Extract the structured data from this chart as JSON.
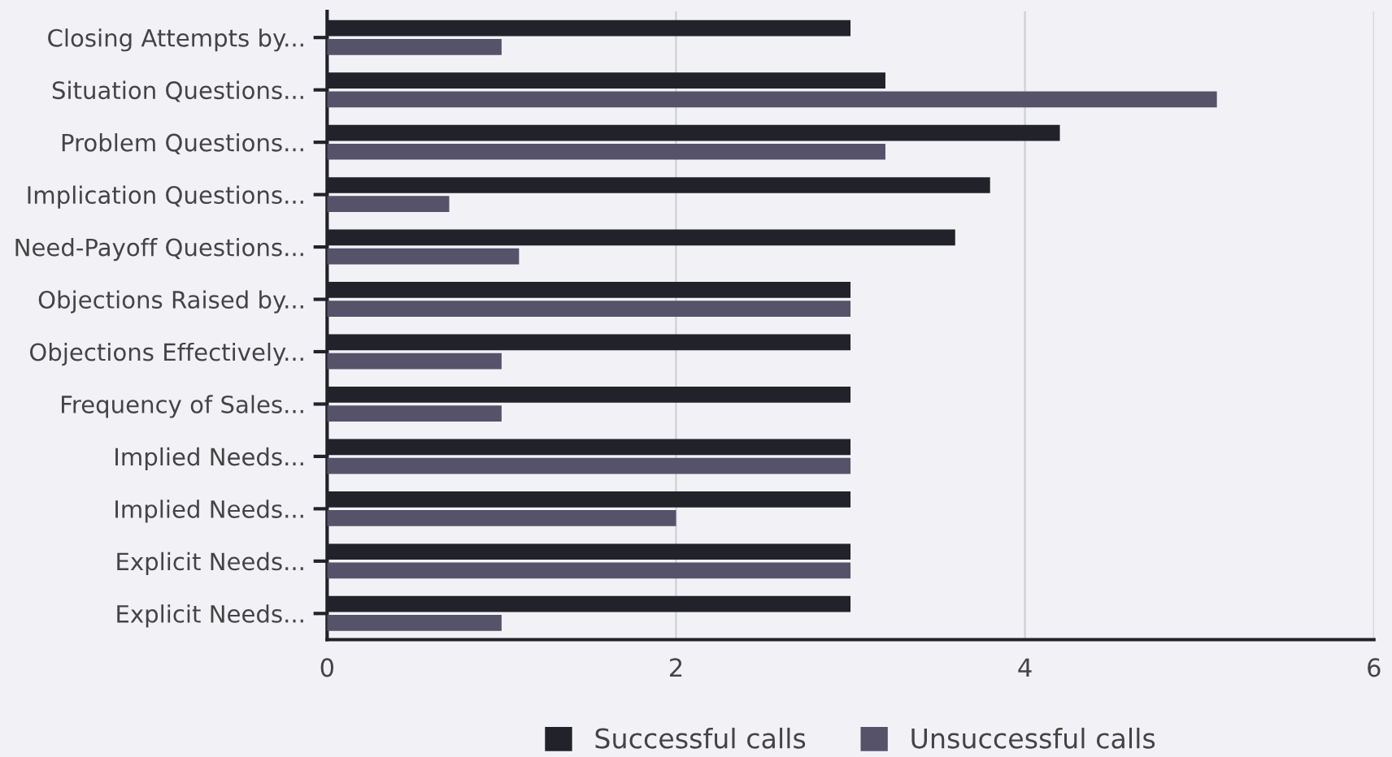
{
  "chart_data": {
    "type": "bar",
    "orientation": "horizontal",
    "categories": [
      "Closing Attempts by...",
      "Situation Questions...",
      "Problem Questions...",
      "Implication Questions...",
      "Need-Payoff Questions...",
      "Objections Raised by...",
      "Objections Effectively...",
      "Frequency of Sales...",
      "Implied Needs...",
      "Implied Needs...",
      "Explicit Needs...",
      "Explicit Needs..."
    ],
    "series": [
      {
        "name": "Successful calls",
        "color": "#22222a",
        "values": [
          3,
          3.2,
          4.2,
          3.8,
          3.6,
          3,
          3,
          3,
          3,
          3,
          3,
          3
        ]
      },
      {
        "name": "Unsuccessful calls",
        "color": "#55526a",
        "values": [
          1,
          5.1,
          3.2,
          0.7,
          1.1,
          3,
          1,
          1,
          3,
          2,
          3,
          1
        ]
      }
    ],
    "xlim": [
      0,
      6
    ],
    "xticks": [
      0,
      2,
      4,
      6
    ],
    "grid": "x",
    "legend": "bottom"
  }
}
